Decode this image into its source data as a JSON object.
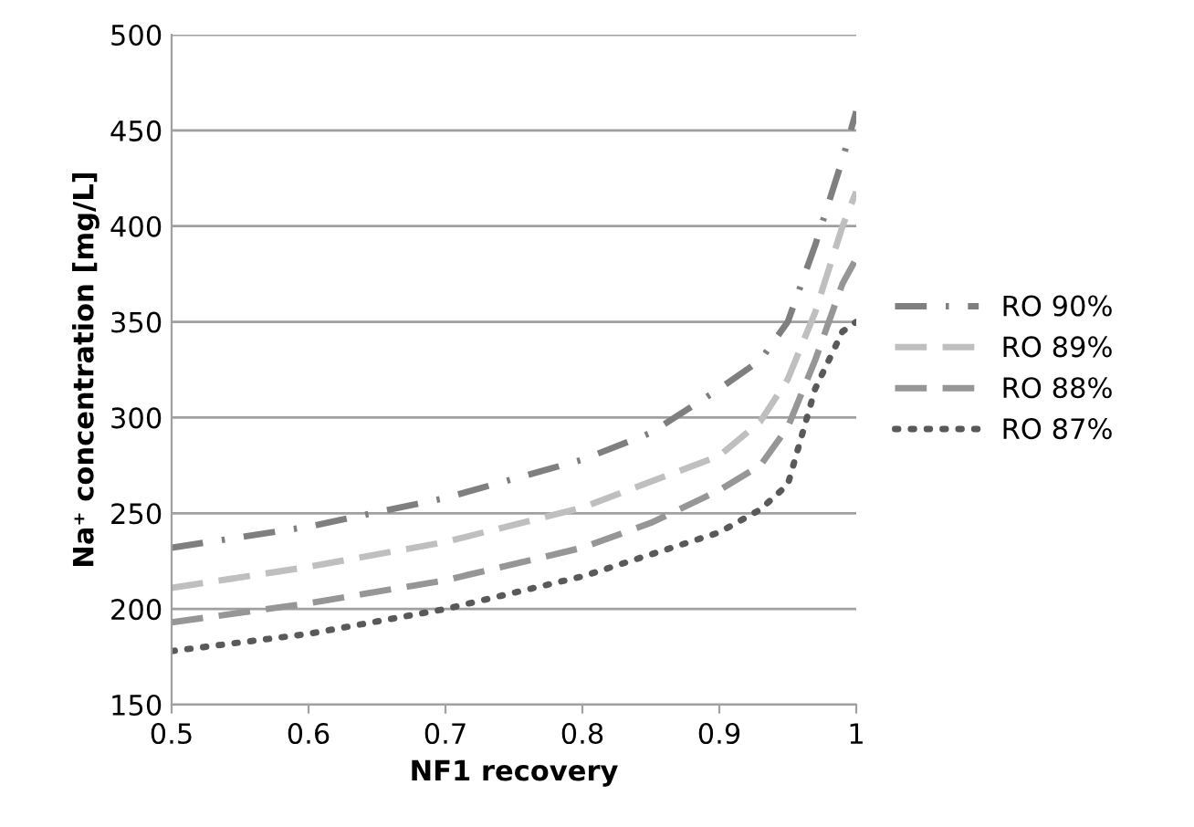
{
  "chart_data": {
    "type": "line",
    "xlabel": "NF1 recovery",
    "ylabel": "Na⁺ concentration [mg/L]",
    "xlim": [
      0.5,
      1
    ],
    "xticks": [
      0.5,
      0.6,
      0.7,
      0.8,
      0.9,
      1
    ],
    "ylim": [
      150,
      500
    ],
    "yticks": [
      150,
      200,
      250,
      300,
      350,
      400,
      450,
      500
    ],
    "grid": "y",
    "legend": "right",
    "marker": "none",
    "series": [
      {
        "name": "RO 90%",
        "color": "#7f7f7f",
        "line_style": "dashdot",
        "x": [
          0.5,
          0.6,
          0.7,
          0.8,
          0.85,
          0.9,
          0.93,
          0.95,
          0.97,
          0.99,
          1.0
        ],
        "values": [
          232,
          243,
          258,
          278,
          292,
          315,
          330,
          350,
          390,
          435,
          460
        ]
      },
      {
        "name": "RO 89%",
        "color": "#bfbfbf",
        "line_style": "dashed",
        "x": [
          0.5,
          0.6,
          0.7,
          0.8,
          0.9,
          0.93,
          0.95,
          0.97,
          0.99,
          1.0
        ],
        "values": [
          211,
          222,
          235,
          253,
          280,
          298,
          320,
          355,
          400,
          418
        ]
      },
      {
        "name": "RO 88%",
        "color": "#969696",
        "line_style": "dashed",
        "x": [
          0.5,
          0.6,
          0.7,
          0.8,
          0.85,
          0.9,
          0.93,
          0.95,
          0.97,
          0.99,
          1.0
        ],
        "values": [
          193,
          203,
          215,
          232,
          245,
          262,
          275,
          295,
          330,
          370,
          383
        ]
      },
      {
        "name": "RO 87%",
        "color": "#595959",
        "line_style": "dotted",
        "x": [
          0.5,
          0.6,
          0.7,
          0.8,
          0.9,
          0.93,
          0.95,
          0.96,
          0.97,
          0.99,
          1.0
        ],
        "values": [
          178,
          187,
          200,
          217,
          240,
          252,
          265,
          290,
          315,
          345,
          350
        ]
      }
    ]
  }
}
